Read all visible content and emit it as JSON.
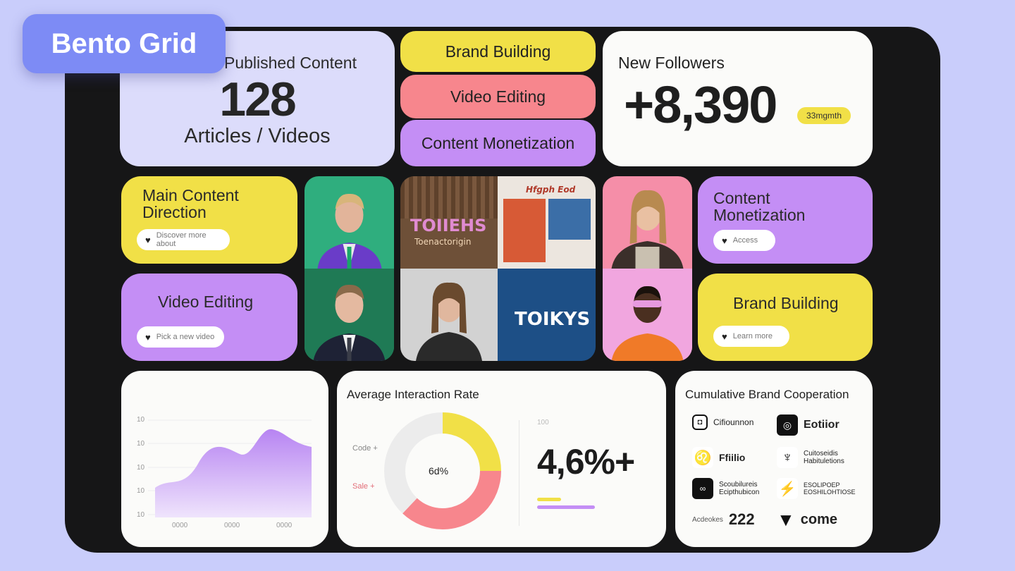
{
  "badge": "Bento Grid",
  "published": {
    "title": "Published Content",
    "value": "128",
    "subtitle": "Articles / Videos"
  },
  "pills": [
    "Brand Building",
    "Video Editing",
    "Content Monetization"
  ],
  "followers": {
    "title": "New Followers",
    "value": "+8,390",
    "tag": "33mgmth"
  },
  "tiles": {
    "main_direction": {
      "label": "Main Content Direction",
      "chip": "Discover more about"
    },
    "video_editing": {
      "label": "Video Editing",
      "chip": "Pick a new video"
    },
    "content_monetization": {
      "label": "Content Monetization",
      "chip": "Access"
    },
    "brand_building": {
      "label": "Brand Building",
      "chip": "Learn more"
    }
  },
  "mosaic": {
    "poster1": "TOIIEHS",
    "poster1_sub": "Toenactorigin",
    "poster2_head": "Hfgph Eod",
    "poster3": "TOIKYS"
  },
  "area_chart": {
    "y_ticks": [
      "10",
      "10",
      "10",
      "10",
      "10"
    ],
    "x_ticks": [
      "0000",
      "0000",
      "0000"
    ]
  },
  "interaction": {
    "title": "Average Interaction Rate",
    "center": "6d%",
    "legend": [
      "Code +",
      "Sale +"
    ],
    "value": "4,6%+",
    "small_label": "100",
    "colors": {
      "yellow": "#f1e047",
      "pink": "#f7868d",
      "gray": "#ececec",
      "purple": "#c48ef5"
    }
  },
  "chart_data": {
    "type": "pie",
    "title": "Average Interaction Rate",
    "slices": [
      {
        "label": "yellow",
        "value": 25
      },
      {
        "label": "pink",
        "value": 37
      },
      {
        "label": "gray",
        "value": 38
      }
    ]
  },
  "brands": {
    "title": "Cumulative Brand Cooperation",
    "items": [
      "Cifiounnon",
      "Eotiior",
      "Ffiilio",
      "Cuitoseidis Habituletions",
      "Scoubilureis Ecipthubicon",
      "ESOLIPOEP EOSHILOHTIOSE",
      "Acdeokes",
      "222",
      "come"
    ]
  }
}
